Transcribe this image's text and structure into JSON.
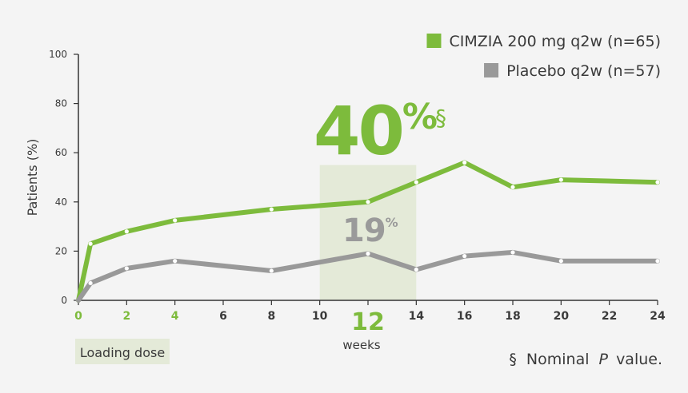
{
  "chart_data": {
    "type": "line",
    "ylabel": "Patients (%)",
    "xlabel": "weeks",
    "xlim": [
      0,
      24
    ],
    "ylim": [
      0,
      100
    ],
    "x_ticks": [
      0,
      2,
      4,
      6,
      8,
      10,
      12,
      14,
      16,
      18,
      20,
      22,
      24
    ],
    "y_ticks": [
      0,
      20,
      40,
      60,
      80,
      100
    ],
    "highlighted_x_ticks": [
      0,
      2,
      4
    ],
    "emphasized_x_tick": 12,
    "grid": false,
    "legend_position": "top-right",
    "series": [
      {
        "name": "CIMZIA 200 mg q2w (n=65)",
        "color": "#7dbb3c",
        "points": [
          {
            "x": 0,
            "y": 0
          },
          {
            "x": 0.5,
            "y": 23
          },
          {
            "x": 2,
            "y": 28
          },
          {
            "x": 4,
            "y": 32.5
          },
          {
            "x": 8,
            "y": 37
          },
          {
            "x": 12,
            "y": 40
          },
          {
            "x": 14,
            "y": 48
          },
          {
            "x": 16,
            "y": 56
          },
          {
            "x": 18,
            "y": 46
          },
          {
            "x": 20,
            "y": 49
          },
          {
            "x": 24,
            "y": 48
          }
        ]
      },
      {
        "name": "Placebo q2w (n=57)",
        "color": "#999999",
        "points": [
          {
            "x": 0,
            "y": 0
          },
          {
            "x": 0.5,
            "y": 7
          },
          {
            "x": 2,
            "y": 13
          },
          {
            "x": 4,
            "y": 16
          },
          {
            "x": 8,
            "y": 12
          },
          {
            "x": 12,
            "y": 19
          },
          {
            "x": 14,
            "y": 12.5
          },
          {
            "x": 16,
            "y": 18
          },
          {
            "x": 18,
            "y": 19.5
          },
          {
            "x": 20,
            "y": 16
          },
          {
            "x": 24,
            "y": 16
          }
        ]
      }
    ],
    "highlight_window": {
      "x_start": 10,
      "x_end": 14,
      "color": "#e4ead8"
    },
    "annotations": {
      "cimzia_value": "40",
      "cimzia_unit": "%",
      "cimzia_mark": "§",
      "placebo_value": "19",
      "placebo_unit": "%"
    },
    "loading_dose_label": "Loading dose",
    "footnote_mark": "§",
    "footnote_text_pre": "Nominal",
    "footnote_text_italic": "P",
    "footnote_text_post": "value."
  },
  "colors": {
    "axis": "#333333",
    "tick_text": "#3a3a3a",
    "highlight_tick": "#7dbb3c",
    "loading_bg": "#e4ead8"
  }
}
